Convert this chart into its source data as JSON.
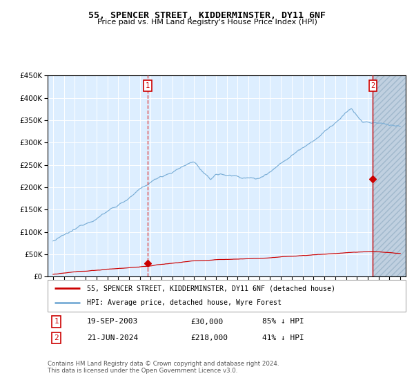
{
  "title": "55, SPENCER STREET, KIDDERMINSTER, DY11 6NF",
  "subtitle": "Price paid vs. HM Land Registry's House Price Index (HPI)",
  "legend_line1": "55, SPENCER STREET, KIDDERMINSTER, DY11 6NF (detached house)",
  "legend_line2": "HPI: Average price, detached house, Wyre Forest",
  "transaction1_date": "19-SEP-2003",
  "transaction1_price": "£30,000",
  "transaction1_hpi": "85% ↓ HPI",
  "transaction2_date": "21-JUN-2024",
  "transaction2_price": "£218,000",
  "transaction2_hpi": "41% ↓ HPI",
  "footnote1": "Contains HM Land Registry data © Crown copyright and database right 2024.",
  "footnote2": "This data is licensed under the Open Government Licence v3.0.",
  "hpi_color": "#7aaed6",
  "price_color": "#cc0000",
  "marker_color": "#cc0000",
  "vline_dashed_color": "#dd4444",
  "vline_solid_color": "#cc0000",
  "bg_color": "#ddeeff",
  "hatch_bg_color": "#c8d8e8",
  "ylim": [
    0,
    450000
  ],
  "xlim_start": 1994.5,
  "xlim_end": 2027.5,
  "transaction1_x": 2003.72,
  "transaction1_y": 30000,
  "transaction2_x": 2024.47,
  "transaction2_y": 218000,
  "grid_color": "#ffffff",
  "anno_box_facecolor": "#ffffff",
  "anno_box_edgecolor": "#cc0000"
}
